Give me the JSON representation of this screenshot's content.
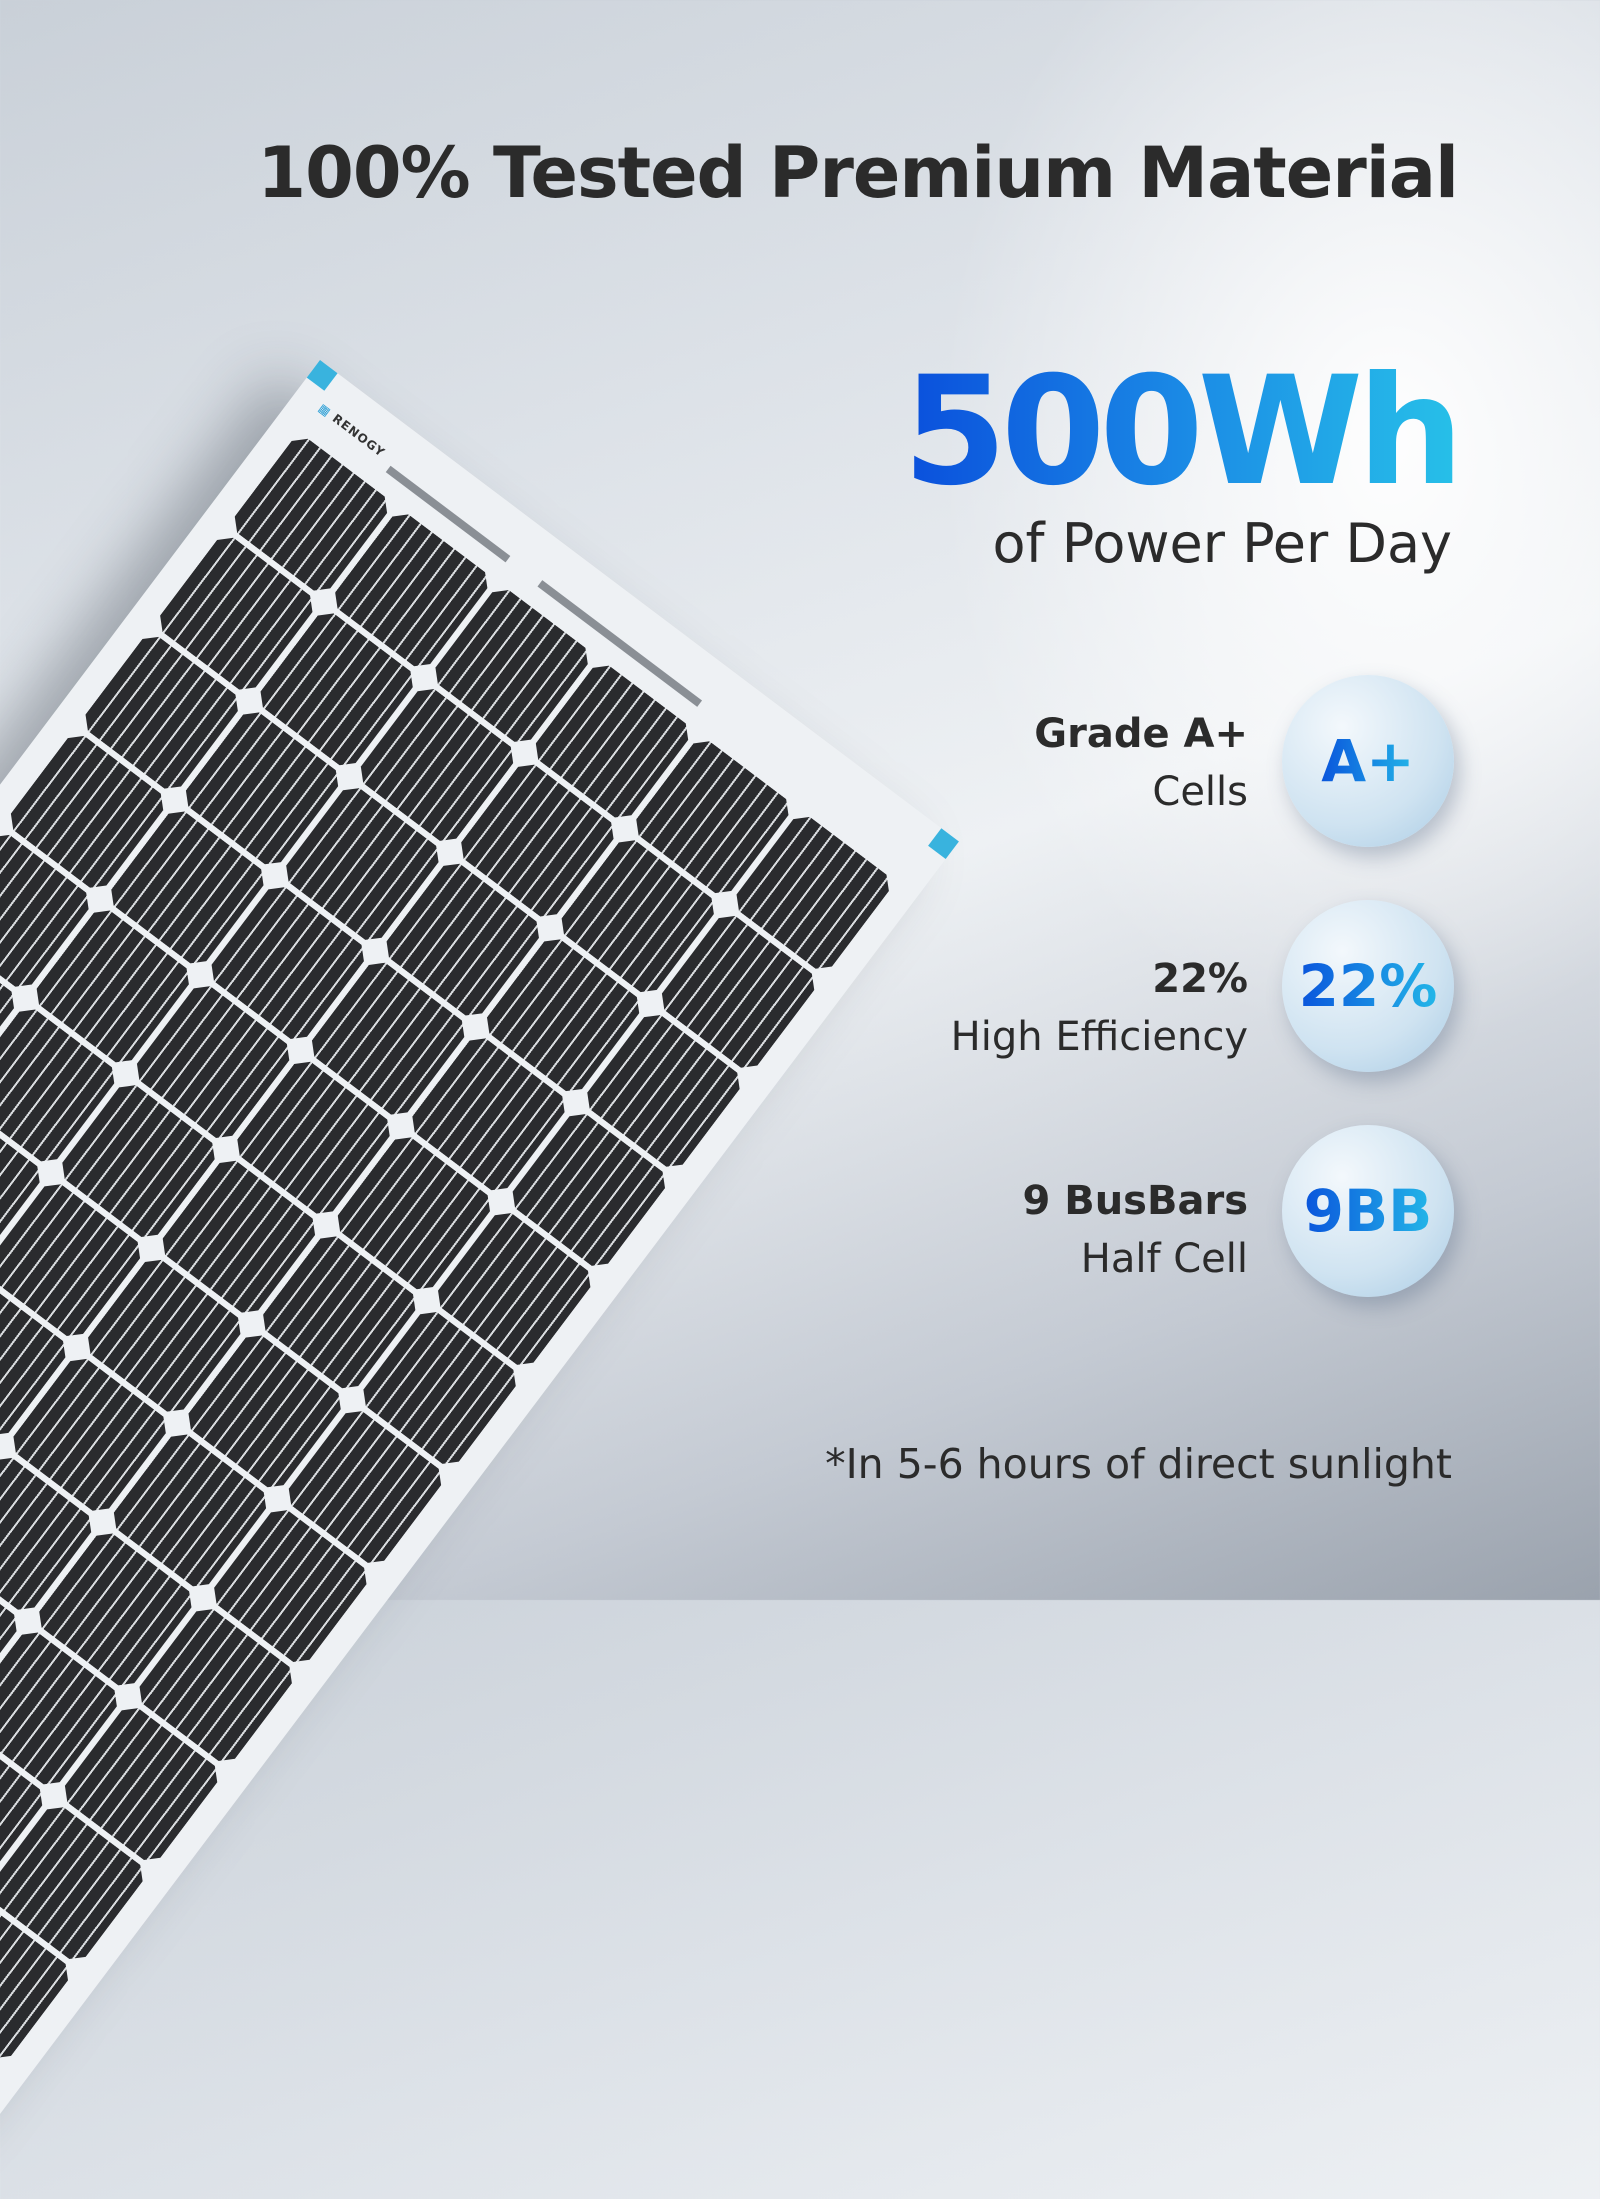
{
  "headline": "100% Tested Premium Material",
  "power": {
    "value": "500Wh",
    "caption": "of Power Per Day"
  },
  "features": [
    {
      "title": "Grade A+",
      "subtitle": "Cells",
      "badge": "A+"
    },
    {
      "title": "22%",
      "subtitle": "High Efficiency",
      "badge": "22%"
    },
    {
      "title": "9 BusBars",
      "subtitle": "Half Cell",
      "badge": "9BB"
    }
  ],
  "footnote": "*In 5-6 hours of direct sunlight",
  "panel_logo": "RENOGY",
  "colors": {
    "accent_blue": "#0a55dc",
    "accent_cyan": "#23b6e8",
    "frame_corner": "#39b3de"
  }
}
